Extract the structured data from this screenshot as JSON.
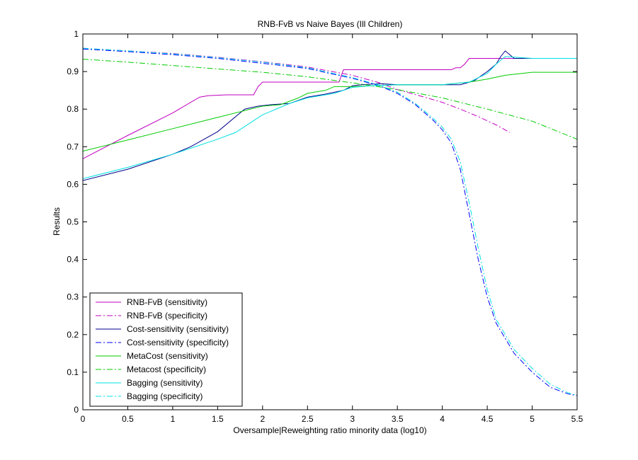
{
  "chart_data": {
    "type": "line",
    "title": "RNB-FvB vs Naive Bayes (Ill Children)",
    "xlabel": "Oversample|Reweighting ratio minority data (log10)",
    "ylabel": "Results",
    "xlim": [
      0,
      5.5
    ],
    "ylim": [
      0,
      1
    ],
    "xticks": [
      "0",
      "0.5",
      "1",
      "1.5",
      "2",
      "2.5",
      "3",
      "3.5",
      "4",
      "4.5",
      "5",
      "5.5"
    ],
    "yticks": [
      "0",
      "0.1",
      "0.2",
      "0.3",
      "0.4",
      "0.5",
      "0.6",
      "0.7",
      "0.8",
      "0.9",
      "1"
    ],
    "grid": false,
    "legend_position": "bottom-left",
    "series": [
      {
        "name": "RNB-FvB (sensitivity)",
        "color": "#c000c0",
        "dash": "solid",
        "x": [
          0,
          0.5,
          1.0,
          1.3,
          1.4,
          1.6,
          1.9,
          1.95,
          2.0,
          2.5,
          2.85,
          2.9,
          3.0,
          3.5,
          4.0,
          4.1,
          4.15,
          4.2,
          4.25,
          4.3,
          4.5,
          4.7,
          4.75,
          4.8,
          5.0,
          5.5
        ],
        "y": [
          0.668,
          0.73,
          0.79,
          0.832,
          0.836,
          0.838,
          0.838,
          0.86,
          0.872,
          0.872,
          0.872,
          0.905,
          0.905,
          0.905,
          0.905,
          0.905,
          0.91,
          0.91,
          0.92,
          0.935,
          0.935,
          0.935,
          0.935,
          0.935,
          0.935,
          0.935
        ]
      },
      {
        "name": "RNB-FvB (specificity)",
        "color": "#c000c0",
        "dash": "dashdot",
        "x": [
          0,
          0.5,
          1.0,
          1.5,
          2.0,
          2.5,
          3.0,
          3.3,
          3.5,
          3.8,
          4.0,
          4.2,
          4.4,
          4.6,
          4.75
        ],
        "y": [
          0.962,
          0.955,
          0.948,
          0.938,
          0.926,
          0.912,
          0.89,
          0.87,
          0.852,
          0.832,
          0.818,
          0.8,
          0.78,
          0.758,
          0.738
        ]
      },
      {
        "name": "Cost-sensitivity (sensitivity)",
        "color": "#00008b",
        "dash": "solid",
        "x": [
          0,
          0.5,
          1.0,
          1.2,
          1.5,
          1.8,
          1.95,
          2.1,
          2.3,
          2.5,
          2.7,
          2.9,
          3.0,
          3.1,
          3.3,
          3.5,
          4.0,
          4.2,
          4.35,
          4.5,
          4.6,
          4.65,
          4.7,
          4.75,
          4.8,
          4.9,
          5.0,
          5.5
        ],
        "y": [
          0.61,
          0.64,
          0.68,
          0.7,
          0.74,
          0.8,
          0.808,
          0.812,
          0.815,
          0.832,
          0.84,
          0.85,
          0.862,
          0.865,
          0.868,
          0.865,
          0.865,
          0.865,
          0.875,
          0.9,
          0.92,
          0.94,
          0.955,
          0.945,
          0.935,
          0.935,
          0.935,
          0.935
        ]
      },
      {
        "name": "Cost-sensitivity (specificity)",
        "color": "#0000ff",
        "dash": "dashdot",
        "x": [
          0,
          0.5,
          1.0,
          1.5,
          2.0,
          2.5,
          3.0,
          3.3,
          3.5,
          3.7,
          3.9,
          4.0,
          4.1,
          4.2,
          4.3,
          4.4,
          4.5,
          4.6,
          4.8,
          5.0,
          5.2,
          5.4,
          5.5
        ],
        "y": [
          0.96,
          0.953,
          0.945,
          0.935,
          0.922,
          0.908,
          0.882,
          0.862,
          0.842,
          0.812,
          0.77,
          0.745,
          0.71,
          0.64,
          0.52,
          0.4,
          0.3,
          0.23,
          0.15,
          0.1,
          0.06,
          0.042,
          0.038
        ]
      },
      {
        "name": "MetaCost (sensitivity)",
        "color": "#00cc00",
        "dash": "solid",
        "x": [
          0,
          0.5,
          1.0,
          1.5,
          2.0,
          2.2,
          2.4,
          2.5,
          2.7,
          2.8,
          3.0,
          3.5,
          4.0,
          4.3,
          4.5,
          4.7,
          5.0,
          5.5
        ],
        "y": [
          0.688,
          0.718,
          0.748,
          0.778,
          0.808,
          0.812,
          0.83,
          0.842,
          0.85,
          0.86,
          0.86,
          0.865,
          0.865,
          0.872,
          0.88,
          0.89,
          0.898,
          0.898
        ]
      },
      {
        "name": "Metacost (specificity)",
        "color": "#00cc00",
        "dash": "dashdot",
        "x": [
          0,
          0.5,
          1.0,
          1.5,
          2.0,
          2.5,
          3.0,
          3.5,
          4.0,
          4.5,
          5.0,
          5.5
        ],
        "y": [
          0.933,
          0.925,
          0.916,
          0.907,
          0.898,
          0.886,
          0.87,
          0.852,
          0.83,
          0.8,
          0.768,
          0.72
        ]
      },
      {
        "name": "Bagging (sensitivity)",
        "color": "#00e0e0",
        "dash": "solid",
        "x": [
          0,
          0.5,
          1.0,
          1.5,
          1.7,
          2.0,
          2.3,
          2.5,
          2.8,
          3.0,
          3.2,
          3.5,
          4.0,
          4.3,
          4.5,
          4.6,
          4.7,
          5.0,
          5.5
        ],
        "y": [
          0.615,
          0.645,
          0.68,
          0.72,
          0.738,
          0.785,
          0.815,
          0.83,
          0.842,
          0.858,
          0.862,
          0.865,
          0.865,
          0.872,
          0.895,
          0.92,
          0.94,
          0.935,
          0.935
        ]
      },
      {
        "name": "Bagging (specificity)",
        "color": "#00e0e0",
        "dash": "dashdot",
        "x": [
          0,
          0.5,
          1.0,
          1.5,
          2.0,
          2.5,
          3.0,
          3.3,
          3.5,
          3.7,
          3.9,
          4.0,
          4.1,
          4.2,
          4.3,
          4.4,
          4.5,
          4.6,
          4.8,
          5.0,
          5.2,
          5.4,
          5.5
        ],
        "y": [
          0.962,
          0.955,
          0.947,
          0.937,
          0.925,
          0.91,
          0.884,
          0.864,
          0.845,
          0.815,
          0.775,
          0.752,
          0.72,
          0.66,
          0.55,
          0.43,
          0.32,
          0.24,
          0.16,
          0.11,
          0.068,
          0.045,
          0.038
        ]
      }
    ]
  }
}
